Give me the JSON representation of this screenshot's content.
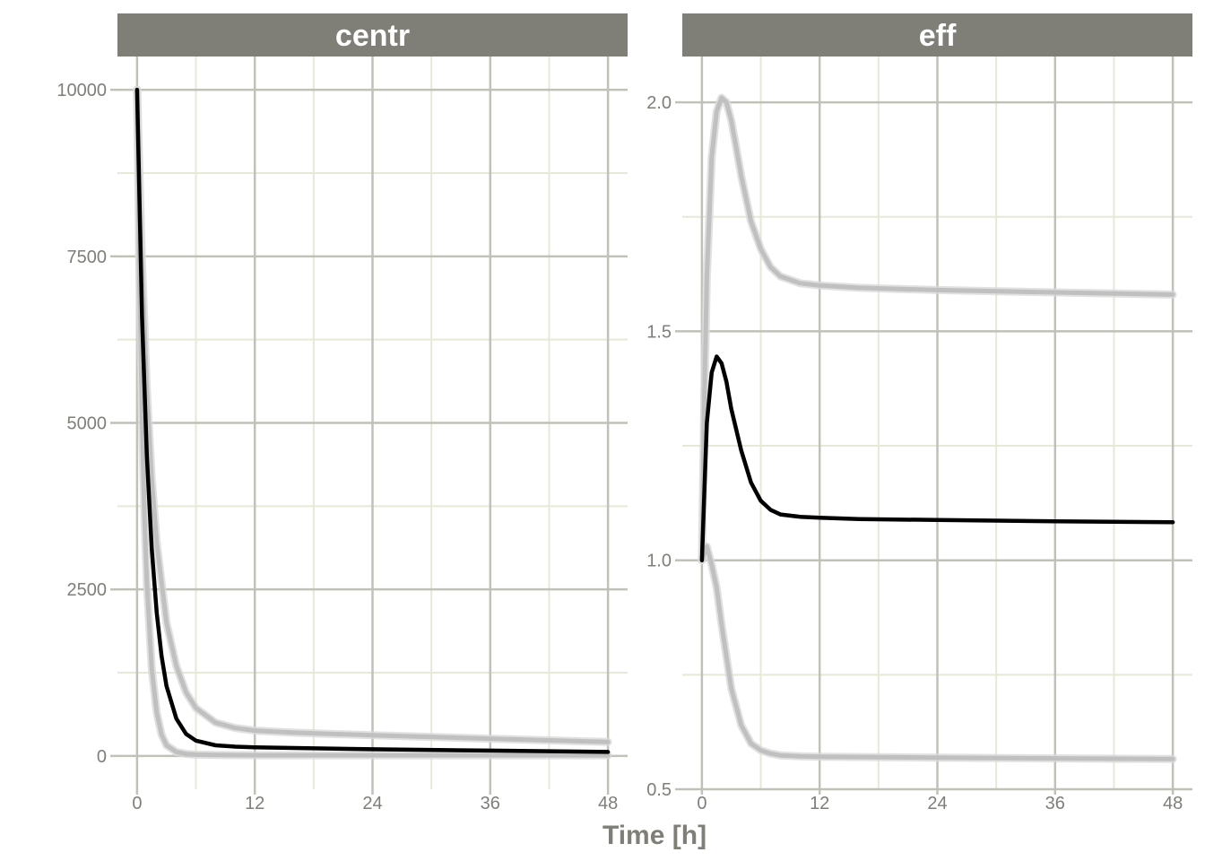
{
  "chart_data": {
    "type": "line",
    "xlabel": "Time [h]",
    "colors": {
      "median": "#000000",
      "bounds": "#c0c0c0",
      "strip": "#7f7f78",
      "major_grid": "#c1c1b8",
      "minor_grid": "#e6e8d8",
      "text": "#7f7f78"
    },
    "panels": [
      {
        "title": "centr",
        "xlim": [
          -2,
          50
        ],
        "ylim": [
          -500,
          10500
        ],
        "x_ticks": [
          0,
          12,
          24,
          36,
          48
        ],
        "x_tick_labels": [
          "0",
          "12",
          "24",
          "36",
          "48"
        ],
        "y_ticks": [
          0,
          2500,
          5000,
          7500,
          10000
        ],
        "y_tick_labels": [
          "0",
          "2500",
          "5000",
          "7500",
          "10000"
        ],
        "series": [
          {
            "role": "upper",
            "x": [
              0,
              0.5,
              1,
              1.5,
              2,
              3,
              4,
              5,
              6,
              8,
              10,
              12,
              16,
              24,
              36,
              48
            ],
            "y": [
              10000,
              7400,
              5500,
              4150,
              3200,
              2000,
              1350,
              950,
              720,
              500,
              420,
              380,
              350,
              310,
              260,
              210
            ]
          },
          {
            "role": "median",
            "x": [
              0,
              0.5,
              1,
              1.5,
              2,
              2.5,
              3,
              4,
              5,
              6,
              8,
              10,
              12,
              16,
              24,
              36,
              48
            ],
            "y": [
              10000,
              6600,
              4500,
              3100,
              2150,
              1500,
              1050,
              560,
              330,
              230,
              160,
              140,
              130,
              120,
              100,
              80,
              60
            ]
          },
          {
            "role": "lower",
            "x": [
              0,
              0.25,
              0.5,
              0.75,
              1,
              1.5,
              2,
              2.5,
              3,
              4,
              5,
              6,
              8,
              12,
              24,
              48
            ],
            "y": [
              10000,
              7200,
              5100,
              3600,
              2600,
              1300,
              650,
              320,
              160,
              60,
              30,
              20,
              15,
              10,
              10,
              10
            ]
          }
        ]
      },
      {
        "title": "eff",
        "xlim": [
          -2,
          50
        ],
        "ylim": [
          0.5,
          2.1
        ],
        "x_ticks": [
          0,
          12,
          24,
          36,
          48
        ],
        "x_tick_labels": [
          "0",
          "12",
          "24",
          "36",
          "48"
        ],
        "y_ticks": [
          0.5,
          1.0,
          1.5,
          2.0
        ],
        "y_tick_labels": [
          "0.5",
          "1.0",
          "1.5",
          "2.0"
        ],
        "series": [
          {
            "role": "upper",
            "x": [
              0,
              0.25,
              0.5,
              1,
              1.5,
              2,
              2.5,
              3,
              3.5,
              4,
              5,
              6,
              7,
              8,
              10,
              12,
              16,
              24,
              36,
              48
            ],
            "y": [
              1.0,
              1.35,
              1.62,
              1.88,
              1.98,
              2.01,
              2.0,
              1.96,
              1.9,
              1.84,
              1.74,
              1.68,
              1.64,
              1.62,
              1.605,
              1.6,
              1.595,
              1.59,
              1.585,
              1.58
            ]
          },
          {
            "role": "median",
            "x": [
              0,
              0.25,
              0.5,
              1,
              1.5,
              2,
              2.5,
              3,
              4,
              5,
              6,
              7,
              8,
              10,
              12,
              16,
              24,
              36,
              48
            ],
            "y": [
              1.0,
              1.15,
              1.3,
              1.41,
              1.445,
              1.43,
              1.39,
              1.33,
              1.24,
              1.17,
              1.13,
              1.11,
              1.1,
              1.095,
              1.093,
              1.09,
              1.088,
              1.085,
              1.083
            ]
          },
          {
            "role": "lower",
            "x": [
              0,
              0.5,
              1,
              1.5,
              2,
              2.5,
              3,
              4,
              5,
              6,
              7,
              8,
              10,
              12,
              24,
              48
            ],
            "y": [
              1.0,
              1.03,
              0.99,
              0.94,
              0.86,
              0.79,
              0.72,
              0.64,
              0.6,
              0.585,
              0.578,
              0.574,
              0.572,
              0.571,
              0.569,
              0.566
            ]
          }
        ]
      }
    ]
  }
}
